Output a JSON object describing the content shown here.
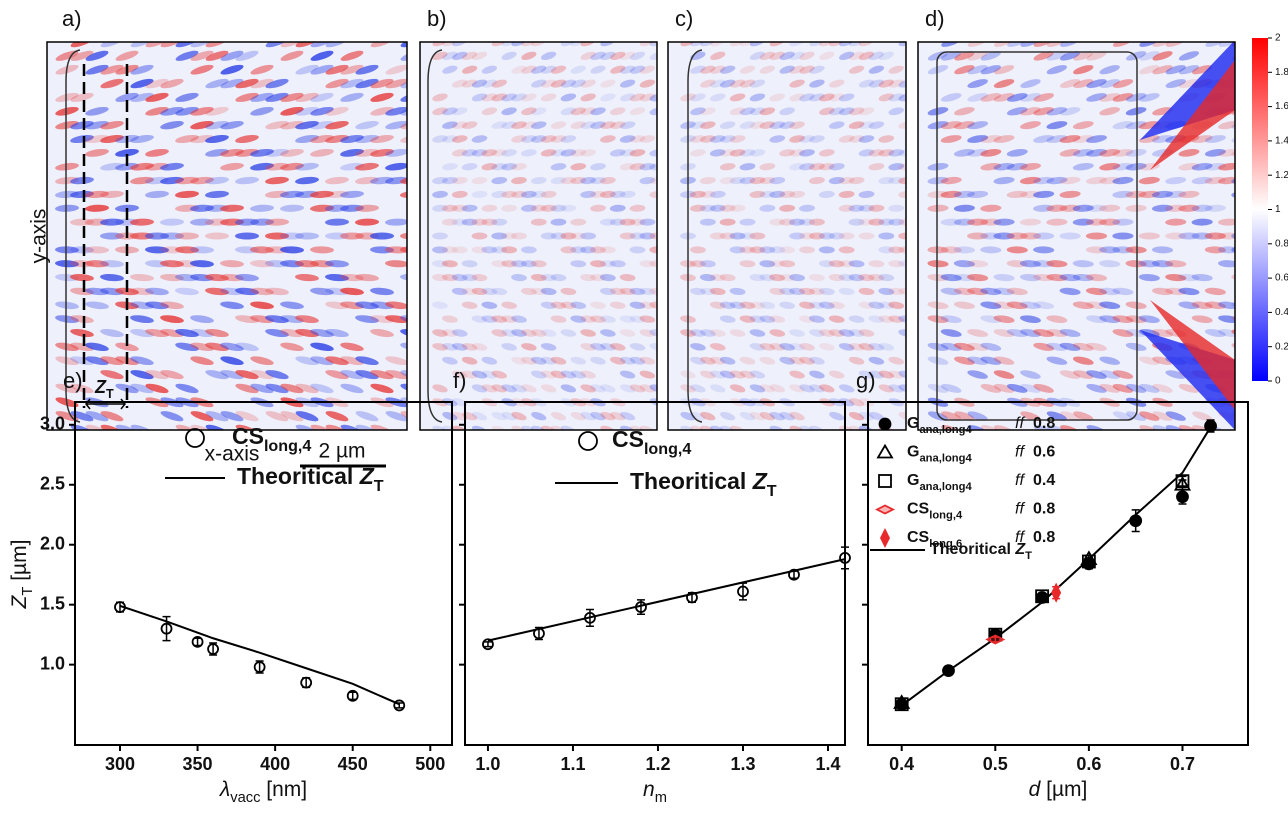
{
  "figure": {
    "panel_labels": [
      "a)",
      "b)",
      "c)",
      "d)"
    ],
    "y_axis_label": "y-axis",
    "x_axis_label": "x-axis",
    "scale_bar": "2 µm",
    "zt_label": "Z",
    "zt_sub": "T",
    "colorbar_lim": [
      0,
      2
    ],
    "colorbar_ticks": [
      0,
      0.2,
      0.4,
      0.6,
      0.8,
      1,
      1.2,
      1.4,
      1.6,
      1.8,
      2
    ]
  },
  "chart_data": [
    {
      "type": "scatter",
      "panel_label": "e)",
      "ylabel": "Z",
      "ylabel_sub": "T",
      "ylabel_unit": " [µm]",
      "xlabel": "λ",
      "xlabel_sub": "vacc",
      "xlabel_unit": " [nm]",
      "ytick_labels": true,
      "xlim": [
        271,
        514
      ],
      "ylim": [
        0.33,
        3.19
      ],
      "xticks": [
        300,
        350,
        400,
        450,
        500
      ],
      "yticks": [
        {
          "value": 1,
          "label": "1.0"
        },
        {
          "value": 1.5,
          "label": "1.5"
        },
        {
          "value": 2,
          "label": "2.0"
        },
        {
          "value": 2.5,
          "label": "2.5"
        },
        {
          "value": 3,
          "label": "3.0"
        }
      ],
      "series": [
        {
          "name": "CS",
          "name_sub": "long,4",
          "marker": "open-circle",
          "color": "#000000",
          "x": [
            300,
            330,
            350,
            360,
            390,
            420,
            450,
            480
          ],
          "values": [
            1.48,
            1.3,
            1.19,
            1.13,
            0.98,
            0.85,
            0.74,
            0.66
          ],
          "errors": [
            0.04,
            0.1,
            0.03,
            0.05,
            0.05,
            0.04,
            0.03,
            0.02
          ]
        }
      ],
      "line": {
        "name": "Theoritical ",
        "name_italic": "Z",
        "name_sub": "T",
        "color": "#000000",
        "x": [
          300,
          330,
          360,
          390,
          420,
          450,
          480
        ],
        "values": [
          1.49,
          1.36,
          1.22,
          1.1,
          0.97,
          0.84,
          0.67
        ]
      }
    },
    {
      "type": "scatter",
      "panel_label": "f)",
      "xlabel": "n",
      "xlabel_sub": "m",
      "ytick_labels": false,
      "xlim": [
        0.973,
        1.42
      ],
      "ylim": [
        0.33,
        3.19
      ],
      "xticks": [
        {
          "value": 1,
          "label": "1.0"
        },
        1.1,
        1.2,
        1.3,
        1.4
      ],
      "yticks": [
        {
          "value": 1,
          "label": "1.0"
        },
        {
          "value": 1.5,
          "label": "1.5"
        },
        {
          "value": 2,
          "label": "2.0"
        },
        {
          "value": 2.5,
          "label": "2.5"
        },
        {
          "value": 3,
          "label": "3.0"
        }
      ],
      "series": [
        {
          "name": "CS",
          "name_sub": "long,4",
          "marker": "open-circle",
          "color": "#000000",
          "x": [
            1,
            1.06,
            1.12,
            1.18,
            1.24,
            1.3,
            1.36,
            1.42
          ],
          "values": [
            1.17,
            1.26,
            1.39,
            1.48,
            1.56,
            1.61,
            1.75,
            1.89
          ],
          "errors": [
            0.02,
            0.05,
            0.07,
            0.06,
            0.04,
            0.07,
            0.03,
            0.09
          ]
        }
      ],
      "line": {
        "name": "Theoritical ",
        "name_italic": "Z",
        "name_sub": "T",
        "color": "#000000",
        "x": [
          1,
          1.42
        ],
        "values": [
          1.2,
          1.88
        ]
      }
    },
    {
      "type": "scatter",
      "panel_label": "g)",
      "xlabel": "d",
      "xlabel_unit": " [µm]",
      "ytick_labels": false,
      "xlim": [
        0.364,
        0.77
      ],
      "ylim": [
        0.33,
        3.19
      ],
      "xticks": [
        0.4,
        0.5,
        0.6,
        0.7
      ],
      "yticks": [
        {
          "value": 1,
          "label": "1.0"
        },
        {
          "value": 1.5,
          "label": "1.5"
        },
        {
          "value": 2,
          "label": "2.0"
        },
        {
          "value": 2.5,
          "label": "2.5"
        },
        {
          "value": 3,
          "label": "3.0"
        }
      ],
      "series": [
        {
          "name": "G",
          "name_sub": "ana,long4",
          "ff": "ff",
          "ff_value": "0.8",
          "marker": "filled-circle",
          "color": "#000000",
          "x": [
            0.4,
            0.45,
            0.5,
            0.55,
            0.6,
            0.65,
            0.7,
            0.73
          ],
          "values": [
            0.67,
            0.95,
            1.25,
            1.56,
            1.84,
            2.2,
            2.4,
            2.99
          ],
          "errors": [
            0.02,
            0.02,
            0.02,
            0.03,
            0.04,
            0.09,
            0.06,
            0.05
          ]
        },
        {
          "name": "G",
          "name_sub": "ana,long4",
          "ff": "ff",
          "ff_value": "0.6",
          "marker": "open-triangle",
          "color": "#000000",
          "x": [
            0.4,
            0.6,
            0.7
          ],
          "values": [
            0.68,
            1.88,
            2.5
          ],
          "errors": [
            0.02,
            0.03,
            0.04
          ]
        },
        {
          "name": "G",
          "name_sub": "ana,long4",
          "ff": "ff",
          "ff_value": "0.4",
          "marker": "open-square",
          "color": "#000000",
          "x": [
            0.4,
            0.5,
            0.55,
            0.6,
            0.7
          ],
          "values": [
            0.67,
            1.25,
            1.57,
            1.86,
            2.53
          ],
          "errors": [
            0.02,
            0.02,
            0.02,
            0.03,
            0.04
          ]
        },
        {
          "name": "CS",
          "name_sub": "long,4",
          "ff": "ff",
          "ff_value": "0.8",
          "marker": "diamond-h",
          "color": "#e8292b",
          "x": [
            0.5
          ],
          "values": [
            1.21
          ],
          "errors": [
            0.02
          ]
        },
        {
          "name": "CS",
          "name_sub": "long,6",
          "ff": "ff",
          "ff_value": "0.8",
          "marker": "diamond-v",
          "color": "#e8292b",
          "x": [
            0.565
          ],
          "values": [
            1.6
          ],
          "errors": [
            0.05
          ]
        }
      ],
      "line": {
        "name": "Theoritical ",
        "name_italic": "Z",
        "name_sub": "T",
        "color": "#000000",
        "x": [
          0.4,
          0.45,
          0.5,
          0.55,
          0.6,
          0.65,
          0.7,
          0.73
        ],
        "values": [
          0.66,
          0.95,
          1.22,
          1.52,
          1.88,
          2.25,
          2.6,
          2.98
        ]
      }
    }
  ]
}
